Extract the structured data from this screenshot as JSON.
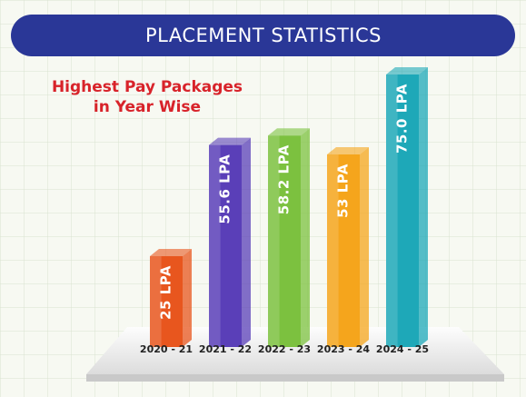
{
  "chart_data": {
    "type": "bar",
    "title": "PLACEMENT STATISTICS",
    "subtitle": [
      "Highest Pay Packages",
      "in Year Wise"
    ],
    "categories": [
      "2020 - 21",
      "2021 - 22",
      "2022 - 23",
      "2023 - 24",
      "2024 - 25"
    ],
    "values": [
      25,
      55.6,
      58.2,
      53,
      75.0
    ],
    "value_labels": [
      "25 LPA",
      "55.6 LPA",
      "58.2 LPA",
      "53 LPA",
      "75.0 LPA"
    ],
    "colors": [
      "#e8561e",
      "#5a3fb8",
      "#7cc13f",
      "#f5a51c",
      "#1ea8b8"
    ]
  }
}
